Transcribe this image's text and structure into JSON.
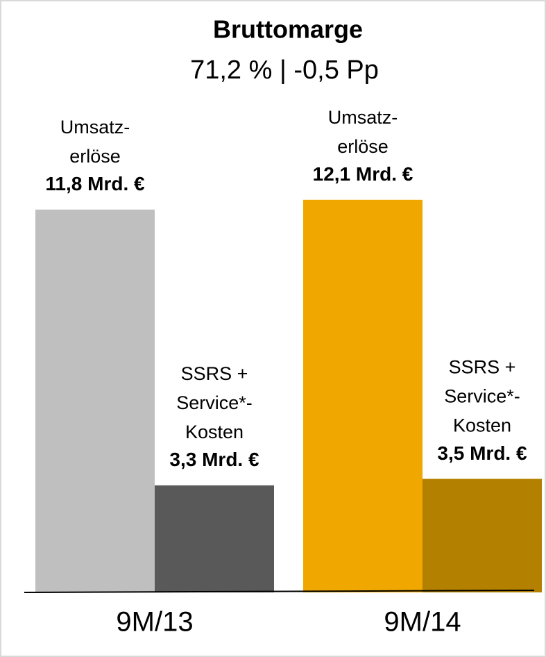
{
  "chart_data": {
    "type": "bar",
    "title": "Bruttomarge",
    "subtitle": "71,2 % | -0,5 Pp",
    "categories": [
      "9M/13",
      "9M/14"
    ],
    "series": [
      {
        "name_lines": [
          "Umsatz-",
          "erlöse"
        ],
        "colors": [
          "#bfbfbf",
          "#f0a800"
        ],
        "values": [
          11.8,
          12.1
        ],
        "value_labels": [
          "11,8 Mrd. €",
          "12,1 Mrd. €"
        ]
      },
      {
        "name_lines": [
          "SSRS +",
          "Service*-",
          "Kosten"
        ],
        "colors": [
          "#595959",
          "#b38000"
        ],
        "values": [
          3.3,
          3.5
        ],
        "value_labels": [
          "3,3 Mrd. €",
          "3,5 Mrd. €"
        ]
      }
    ],
    "ylim": [
      0,
      14
    ]
  }
}
